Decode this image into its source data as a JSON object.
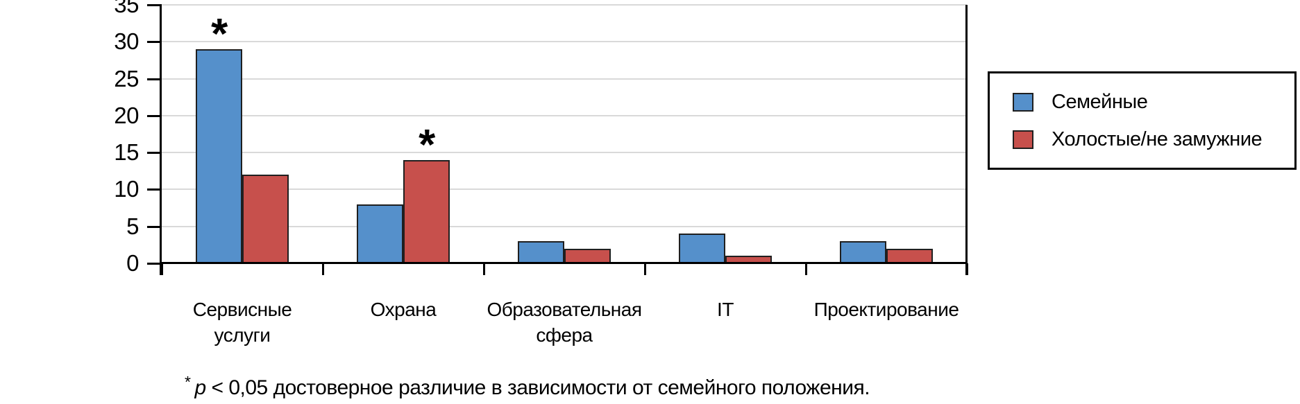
{
  "chart_data": {
    "type": "bar",
    "categories": [
      [
        "Сервисные",
        "услуги"
      ],
      [
        "Охрана"
      ],
      [
        "Образовательная",
        "сфера"
      ],
      [
        "IT"
      ],
      [
        "Проектирование"
      ]
    ],
    "series": [
      {
        "name": "Семейные",
        "color": "#5590CB",
        "values": [
          29,
          8,
          3,
          4,
          3
        ]
      },
      {
        "name": "Холостые/не замужние",
        "color": "#C7504C",
        "values": [
          12,
          14,
          2,
          1,
          2
        ]
      }
    ],
    "ylim": [
      0,
      35
    ],
    "yticks": [
      0,
      5,
      10,
      15,
      20,
      25,
      30,
      35
    ],
    "grid": "horizontal",
    "gridline_color": "#d9d9d9",
    "legend_position": "right",
    "annotations": [
      {
        "symbol": "*",
        "series": 0,
        "category": 0
      },
      {
        "symbol": "*",
        "series": 1,
        "category": 1
      }
    ],
    "title": "",
    "xlabel": "",
    "ylabel": ""
  },
  "legend": {
    "items": [
      {
        "label": "Семейные",
        "color": "#5590CB"
      },
      {
        "label": "Холостые/не замужние",
        "color": "#C7504C"
      }
    ]
  },
  "footnote": {
    "star": "*",
    "p": "p",
    "text": "< 0,05 достоверное различие в зависимости от семейного положения."
  }
}
